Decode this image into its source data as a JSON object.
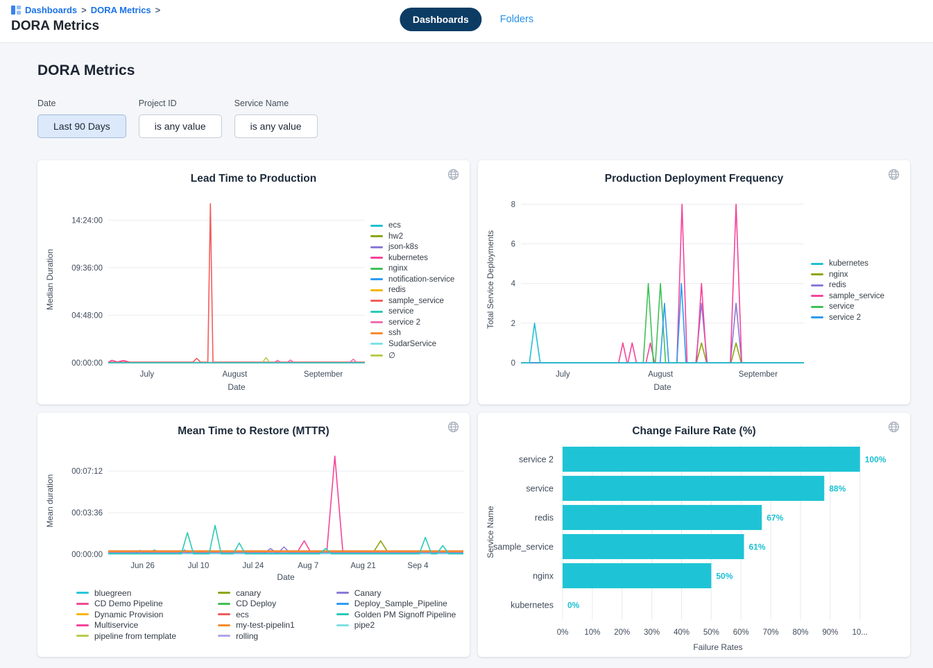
{
  "header": {
    "breadcrumb": {
      "items": [
        "Dashboards",
        "DORA Metrics"
      ],
      "separator": ">"
    },
    "page_title": "DORA Metrics",
    "tabs": [
      {
        "label": "Dashboards",
        "active": true
      },
      {
        "label": "Folders",
        "active": false
      }
    ]
  },
  "main": {
    "section_title": "DORA Metrics",
    "filters": [
      {
        "label": "Date",
        "value": "Last 90 Days",
        "active": true
      },
      {
        "label": "Project ID",
        "value": "is any value",
        "active": false
      },
      {
        "label": "Service Name",
        "value": "is any value",
        "active": false
      }
    ]
  },
  "icons": {
    "breadcrumb": "dashboards-grid-icon",
    "card_corner": "globe-icon"
  },
  "colors": {
    "link_blue": "#1a73e8",
    "tab_active_bg": "#0c3c64",
    "folders_blue": "#2491ec",
    "page_bg": "#f4f6f9",
    "bar_cyan": "#1ec4d5",
    "value_label_cyan": "#19bfd3"
  },
  "chart_data": [
    {
      "type": "line",
      "title": "Lead Time to Production",
      "xlabel": "Date",
      "ylabel": "Median Duration",
      "ylim": [
        0,
        60500
      ],
      "yticks": [
        {
          "v": 0,
          "label": "00:00:00"
        },
        {
          "v": 17280,
          "label": "04:48:00"
        },
        {
          "v": 34560,
          "label": "09:36:00"
        },
        {
          "v": 51840,
          "label": "14:24:00"
        }
      ],
      "xticks": [
        {
          "x": 0.151,
          "label": "July"
        },
        {
          "x": 0.493,
          "label": "August"
        },
        {
          "x": 0.838,
          "label": "September"
        }
      ],
      "legend_position": "right",
      "series": [
        {
          "name": "ecs",
          "color": "#21c0d3",
          "z": 3,
          "points": [
            [
              0,
              0
            ],
            [
              1,
              0
            ]
          ]
        },
        {
          "name": "hw2",
          "color": "#8aa80d",
          "points": [
            [
              0,
              0
            ],
            [
              1,
              0
            ]
          ]
        },
        {
          "name": "json-k8s",
          "color": "#8b79d9",
          "points": [
            [
              0,
              0
            ],
            [
              1,
              0
            ]
          ]
        },
        {
          "name": "kubernetes",
          "color": "#f5449b",
          "points": [
            [
              0,
              200
            ],
            [
              0.015,
              900
            ],
            [
              0.035,
              300
            ],
            [
              0.06,
              800
            ],
            [
              0.085,
              200
            ],
            [
              0.12,
              100
            ],
            [
              1,
              100
            ]
          ]
        },
        {
          "name": "nginx",
          "color": "#40c057",
          "points": [
            [
              0,
              0
            ],
            [
              1,
              0
            ]
          ]
        },
        {
          "name": "notification-service",
          "color": "#2f9bf2",
          "points": [
            [
              0,
              0
            ],
            [
              1,
              0
            ]
          ]
        },
        {
          "name": "redis",
          "color": "#f7b500",
          "points": [
            [
              0,
              0
            ],
            [
              1,
              0
            ]
          ]
        },
        {
          "name": "sample_service",
          "color": "#f25c5c",
          "points": [
            [
              0,
              250
            ],
            [
              0.33,
              250
            ],
            [
              0.345,
              1600
            ],
            [
              0.36,
              250
            ],
            [
              0.388,
              250
            ],
            [
              0.398,
              57800
            ],
            [
              0.408,
              250
            ],
            [
              1,
              250
            ]
          ]
        },
        {
          "name": "service",
          "color": "#2cc9b5",
          "points": [
            [
              0,
              0
            ],
            [
              1,
              0
            ]
          ]
        },
        {
          "name": "service 2",
          "color": "#f06eae",
          "points": [
            [
              0,
              0
            ],
            [
              0.645,
              0
            ],
            [
              0.66,
              900
            ],
            [
              0.675,
              0
            ],
            [
              0.695,
              0
            ],
            [
              0.71,
              1000
            ],
            [
              0.725,
              0
            ],
            [
              0.94,
              0
            ],
            [
              0.955,
              1300
            ],
            [
              0.97,
              0
            ],
            [
              1,
              0
            ]
          ]
        },
        {
          "name": "ssh",
          "color": "#f78b31",
          "points": [
            [
              0,
              0
            ],
            [
              1,
              0
            ]
          ]
        },
        {
          "name": "SudarService",
          "color": "#7fe0e4",
          "points": [
            [
              0,
              0
            ],
            [
              1,
              0
            ]
          ]
        },
        {
          "name": "∅",
          "color": "#b8cc4e",
          "points": [
            [
              0,
              0
            ],
            [
              0.6,
              0
            ],
            [
              0.615,
              1900
            ],
            [
              0.63,
              0
            ],
            [
              1,
              0
            ]
          ]
        }
      ]
    },
    {
      "type": "line",
      "title": "Production Deployment Frequency",
      "xlabel": "Date",
      "ylabel": "Total Service Deployments",
      "ylim": [
        0,
        8.4
      ],
      "yticks": [
        {
          "v": 0,
          "label": "0"
        },
        {
          "v": 2,
          "label": "2"
        },
        {
          "v": 4,
          "label": "4"
        },
        {
          "v": 6,
          "label": "6"
        },
        {
          "v": 8,
          "label": "8"
        }
      ],
      "xticks": [
        {
          "x": 0.148,
          "label": "July"
        },
        {
          "x": 0.493,
          "label": "August"
        },
        {
          "x": 0.838,
          "label": "September"
        }
      ],
      "legend_position": "right",
      "series": [
        {
          "name": "kubernetes",
          "color": "#21c0d3",
          "z": 3,
          "points": [
            [
              0,
              0
            ],
            [
              0.03,
              0
            ],
            [
              0.048,
              2
            ],
            [
              0.068,
              0
            ],
            [
              1,
              0
            ]
          ]
        },
        {
          "name": "nginx",
          "color": "#8aa80d",
          "points": [
            [
              0,
              0
            ],
            [
              0.62,
              0
            ],
            [
              0.638,
              1
            ],
            [
              0.656,
              0
            ],
            [
              0.742,
              0
            ],
            [
              0.76,
              1
            ],
            [
              0.778,
              0
            ],
            [
              1,
              0
            ]
          ]
        },
        {
          "name": "redis",
          "color": "#8b79d9",
          "points": [
            [
              0,
              0
            ],
            [
              0.618,
              0
            ],
            [
              0.638,
              3
            ],
            [
              0.658,
              0
            ],
            [
              0.74,
              0
            ],
            [
              0.76,
              3
            ],
            [
              0.78,
              0
            ],
            [
              1,
              0
            ]
          ]
        },
        {
          "name": "sample_service",
          "color": "#f5449b",
          "points": [
            [
              0,
              0
            ],
            [
              0.345,
              0
            ],
            [
              0.36,
              1
            ],
            [
              0.375,
              0
            ],
            [
              0.378,
              0
            ],
            [
              0.393,
              1
            ],
            [
              0.408,
              0
            ],
            [
              0.442,
              0
            ],
            [
              0.457,
              1
            ],
            [
              0.472,
              0
            ],
            [
              0.551,
              0
            ],
            [
              0.569,
              8
            ],
            [
              0.587,
              0
            ],
            [
              0.62,
              0
            ],
            [
              0.638,
              4
            ],
            [
              0.656,
              0
            ],
            [
              0.74,
              0
            ],
            [
              0.76,
              8
            ],
            [
              0.78,
              0
            ],
            [
              1,
              0
            ]
          ]
        },
        {
          "name": "service",
          "color": "#40c057",
          "points": [
            [
              0,
              0
            ],
            [
              0.432,
              0
            ],
            [
              0.45,
              4
            ],
            [
              0.468,
              0
            ],
            [
              0.475,
              0
            ],
            [
              0.493,
              4
            ],
            [
              0.511,
              0
            ],
            [
              1,
              0
            ]
          ]
        },
        {
          "name": "service 2",
          "color": "#2f9bf2",
          "points": [
            [
              0,
              0
            ],
            [
              0.492,
              0
            ],
            [
              0.507,
              3
            ],
            [
              0.522,
              0
            ],
            [
              0.551,
              0
            ],
            [
              0.567,
              4
            ],
            [
              0.583,
              0
            ],
            [
              1,
              0
            ]
          ]
        }
      ]
    },
    {
      "type": "line",
      "title": "Mean Time to Restore (MTTR)",
      "xlabel": "Date",
      "ylabel": "Mean duration",
      "ylim": [
        0,
        555
      ],
      "yticks": [
        {
          "v": 0,
          "label": "00:00:00"
        },
        {
          "v": 216,
          "label": "00:03:36"
        },
        {
          "v": 432,
          "label": "00:07:12"
        }
      ],
      "xticks": [
        {
          "x": 0.097,
          "label": "Jun 26"
        },
        {
          "x": 0.254,
          "label": "Jul 10"
        },
        {
          "x": 0.408,
          "label": "Jul 24"
        },
        {
          "x": 0.563,
          "label": "Aug 7"
        },
        {
          "x": 0.718,
          "label": "Aug 21"
        },
        {
          "x": 0.872,
          "label": "Sep 4"
        }
      ],
      "legend_position": "bottom",
      "series": [
        {
          "name": "bluegreen",
          "color": "#26c6da",
          "points": [
            [
              0,
              10
            ],
            [
              0.115,
              10
            ],
            [
              0.13,
              22
            ],
            [
              0.145,
              10
            ],
            [
              1,
              10
            ]
          ]
        },
        {
          "name": "CD Demo Pipeline",
          "color": "#ed4c92",
          "points": [
            [
              0,
              8
            ],
            [
              1,
              8
            ]
          ]
        },
        {
          "name": "Dynamic Provision",
          "color": "#f7b500",
          "points": [
            [
              0,
              14
            ],
            [
              1,
              14
            ]
          ]
        },
        {
          "name": "Multiservice",
          "color": "#f5449b",
          "points": [
            [
              0,
              4
            ],
            [
              0.53,
              4
            ],
            [
              0.552,
              70
            ],
            [
              0.572,
              4
            ],
            [
              0.615,
              4
            ],
            [
              0.638,
              510
            ],
            [
              0.661,
              4
            ],
            [
              1,
              4
            ]
          ]
        },
        {
          "name": "pipeline from template",
          "color": "#b8cc4e",
          "points": [
            [
              0,
              6
            ],
            [
              1,
              6
            ]
          ]
        },
        {
          "name": "canary",
          "color": "#8aa80d",
          "points": [
            [
              0,
              5
            ],
            [
              0.745,
              5
            ],
            [
              0.767,
              70
            ],
            [
              0.789,
              5
            ],
            [
              1,
              5
            ]
          ]
        },
        {
          "name": "CD Deploy",
          "color": "#40c057",
          "points": [
            [
              0,
              5
            ],
            [
              1,
              5
            ]
          ]
        },
        {
          "name": "ecs",
          "color": "#f25c5c",
          "points": [
            [
              0,
              10
            ],
            [
              1,
              10
            ]
          ]
        },
        {
          "name": "my-test-pipelin1",
          "color": "#f78b31",
          "z": 4,
          "w": 2.6,
          "points": [
            [
              0,
              16
            ],
            [
              1,
              16
            ]
          ]
        },
        {
          "name": "rolling",
          "color": "#b3a4ea",
          "points": [
            [
              0,
              7
            ],
            [
              1,
              7
            ]
          ]
        },
        {
          "name": "Canary",
          "color": "#8b79d9",
          "points": [
            [
              0,
              6
            ],
            [
              0.44,
              6
            ],
            [
              0.457,
              30
            ],
            [
              0.474,
              6
            ],
            [
              0.478,
              6
            ],
            [
              0.495,
              38
            ],
            [
              0.512,
              6
            ],
            [
              1,
              6
            ]
          ]
        },
        {
          "name": "Deploy_Sample_Pipeline",
          "color": "#2f9bf2",
          "points": [
            [
              0,
              5
            ],
            [
              0.075,
              5
            ],
            [
              0.09,
              20
            ],
            [
              0.105,
              5
            ],
            [
              0.2,
              5
            ],
            [
              0.215,
              22
            ],
            [
              0.23,
              5
            ],
            [
              1,
              5
            ]
          ]
        },
        {
          "name": "Golden PM Signoff Pipeline",
          "color": "#2cc9b5",
          "z": 5,
          "points": [
            [
              0,
              2
            ],
            [
              0.206,
              2
            ],
            [
              0.223,
              112
            ],
            [
              0.24,
              2
            ],
            [
              0.284,
              2
            ],
            [
              0.301,
              150
            ],
            [
              0.318,
              2
            ],
            [
              0.352,
              2
            ],
            [
              0.369,
              58
            ],
            [
              0.386,
              2
            ],
            [
              0.595,
              2
            ],
            [
              0.612,
              30
            ],
            [
              0.629,
              2
            ],
            [
              0.876,
              2
            ],
            [
              0.893,
              88
            ],
            [
              0.91,
              2
            ],
            [
              0.925,
              2
            ],
            [
              0.942,
              45
            ],
            [
              0.959,
              2
            ],
            [
              1,
              2
            ]
          ]
        },
        {
          "name": "pipe2",
          "color": "#7fe0e4",
          "points": [
            [
              0,
              3
            ],
            [
              1,
              3
            ]
          ]
        }
      ]
    },
    {
      "type": "bar",
      "title": "Change Failure Rate (%)",
      "xlabel": "Failure Rates",
      "ylabel": "Service Name",
      "bar_color": "#1ec4d5",
      "categories": [
        "service 2",
        "service",
        "redis",
        "sample_service",
        "nginx",
        "kubernetes"
      ],
      "values": [
        100,
        88,
        67,
        61,
        50,
        0
      ],
      "value_labels": [
        "100%",
        "88%",
        "67%",
        "61%",
        "50%",
        "0%"
      ],
      "xtick_values": [
        0,
        10,
        20,
        30,
        40,
        50,
        60,
        70,
        80,
        90,
        100
      ],
      "xticks": [
        "0%",
        "10%",
        "20%",
        "30%",
        "40%",
        "50%",
        "60%",
        "70%",
        "80%",
        "90%",
        "10..."
      ],
      "xmax": 104.5
    }
  ]
}
